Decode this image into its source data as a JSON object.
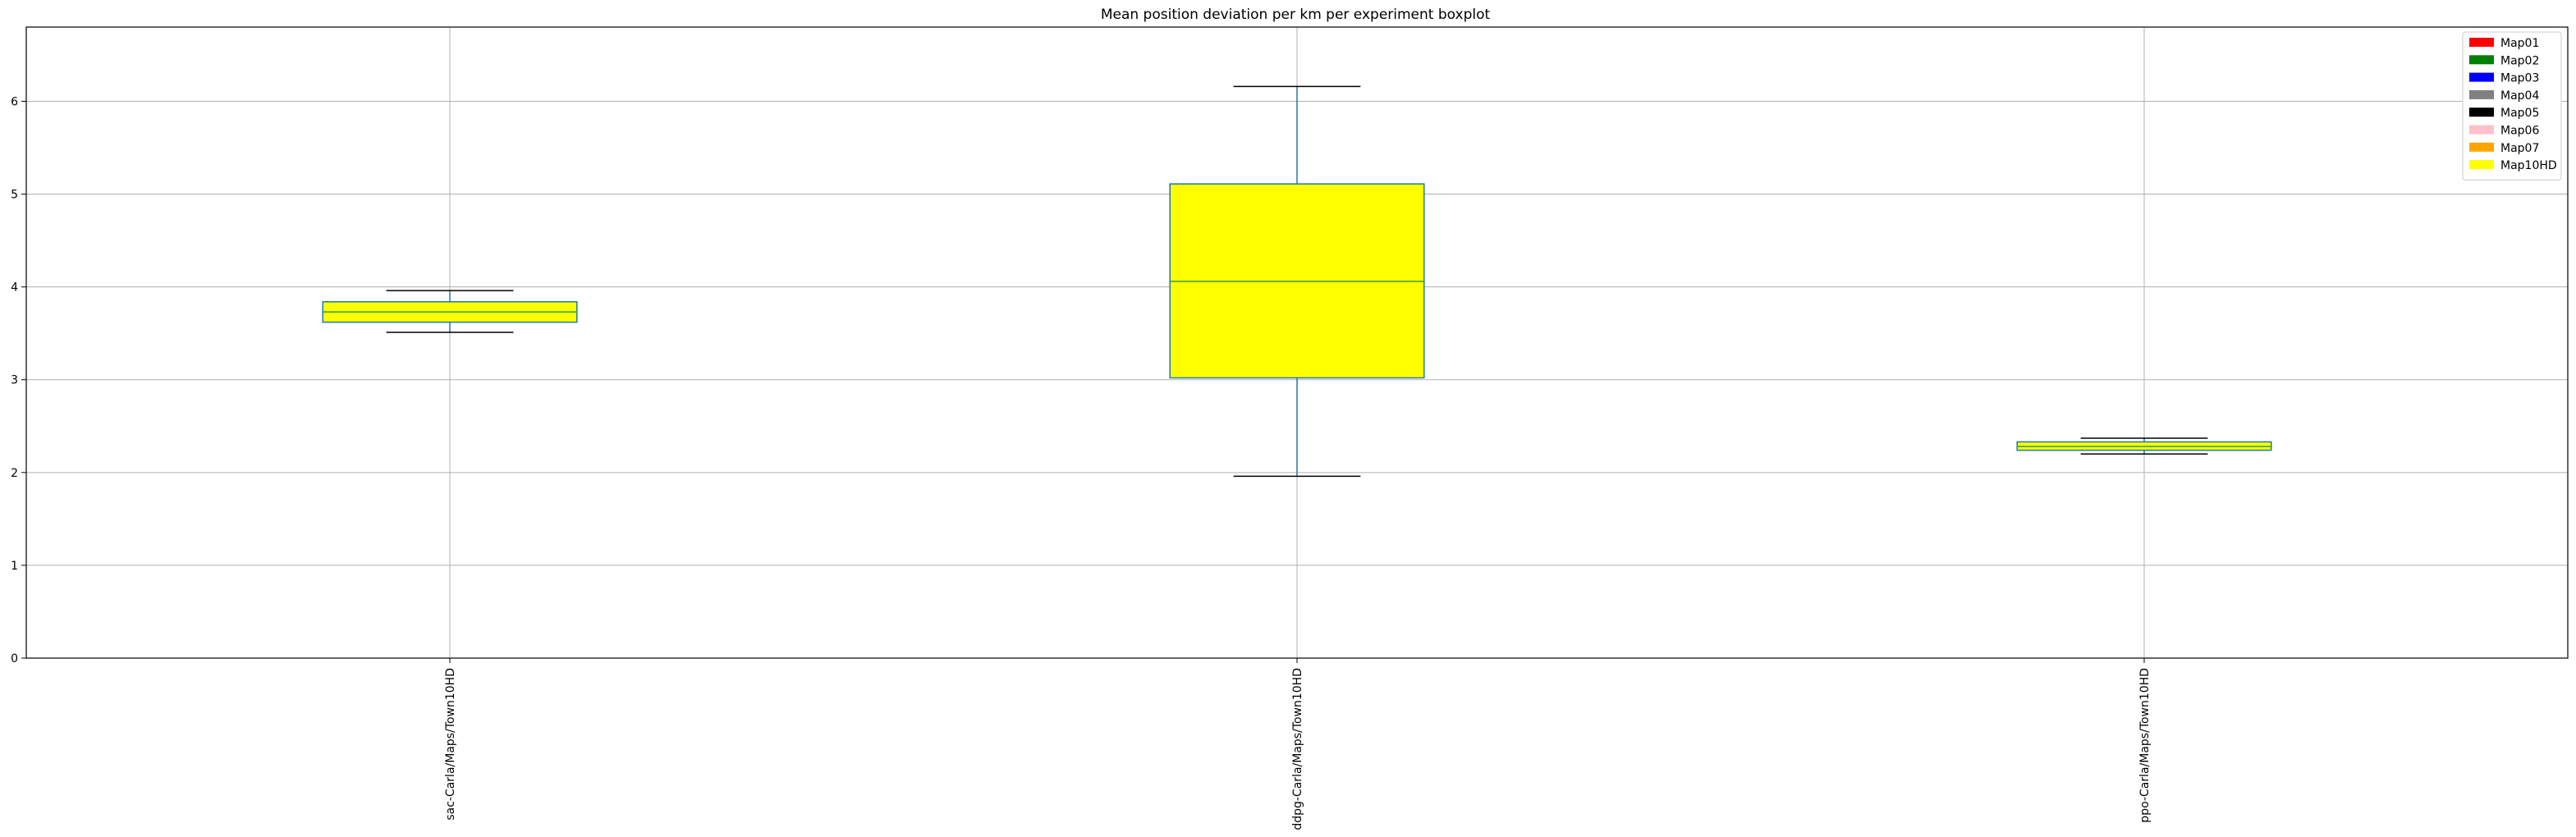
{
  "chart_data": {
    "type": "boxplot",
    "title": "Mean position deviation per km per experiment boxplot",
    "xlabel": "",
    "ylabel": "",
    "ylim": [
      0,
      6.8
    ],
    "yticks": [
      0,
      1,
      2,
      3,
      4,
      5,
      6
    ],
    "grid": true,
    "legend_position": "top-right",
    "categories": [
      "sac-Carla/Maps/Town10HD",
      "ddpg-Carla/Maps/Town10HD",
      "ppo-Carla/Maps/Town10HD"
    ],
    "boxes": [
      {
        "category": "sac-Carla/Maps/Town10HD",
        "whisker_low": 3.51,
        "q1": 3.62,
        "median": 3.73,
        "q3": 3.84,
        "whisker_high": 3.96
      },
      {
        "category": "ddpg-Carla/Maps/Town10HD",
        "whisker_low": 1.96,
        "q1": 3.02,
        "median": 4.06,
        "q3": 5.11,
        "whisker_high": 6.16
      },
      {
        "category": "ppo-Carla/Maps/Town10HD",
        "whisker_low": 2.2,
        "q1": 2.24,
        "median": 2.28,
        "q3": 2.33,
        "whisker_high": 2.37
      }
    ],
    "box_fill": "#ffff00",
    "box_edge": "#1f77b4",
    "whisker_color": "#1f77b4",
    "cap_color": "#000000",
    "median_color": "#2ca02c",
    "legend": [
      {
        "label": "Map01",
        "color": "#ff0000"
      },
      {
        "label": "Map02",
        "color": "#008000"
      },
      {
        "label": "Map03",
        "color": "#0000ff"
      },
      {
        "label": "Map04",
        "color": "#808080"
      },
      {
        "label": "Map05",
        "color": "#000000"
      },
      {
        "label": "Map06",
        "color": "#ffc0cb"
      },
      {
        "label": "Map07",
        "color": "#ffa500"
      },
      {
        "label": "Map10HD",
        "color": "#ffff00"
      }
    ]
  }
}
